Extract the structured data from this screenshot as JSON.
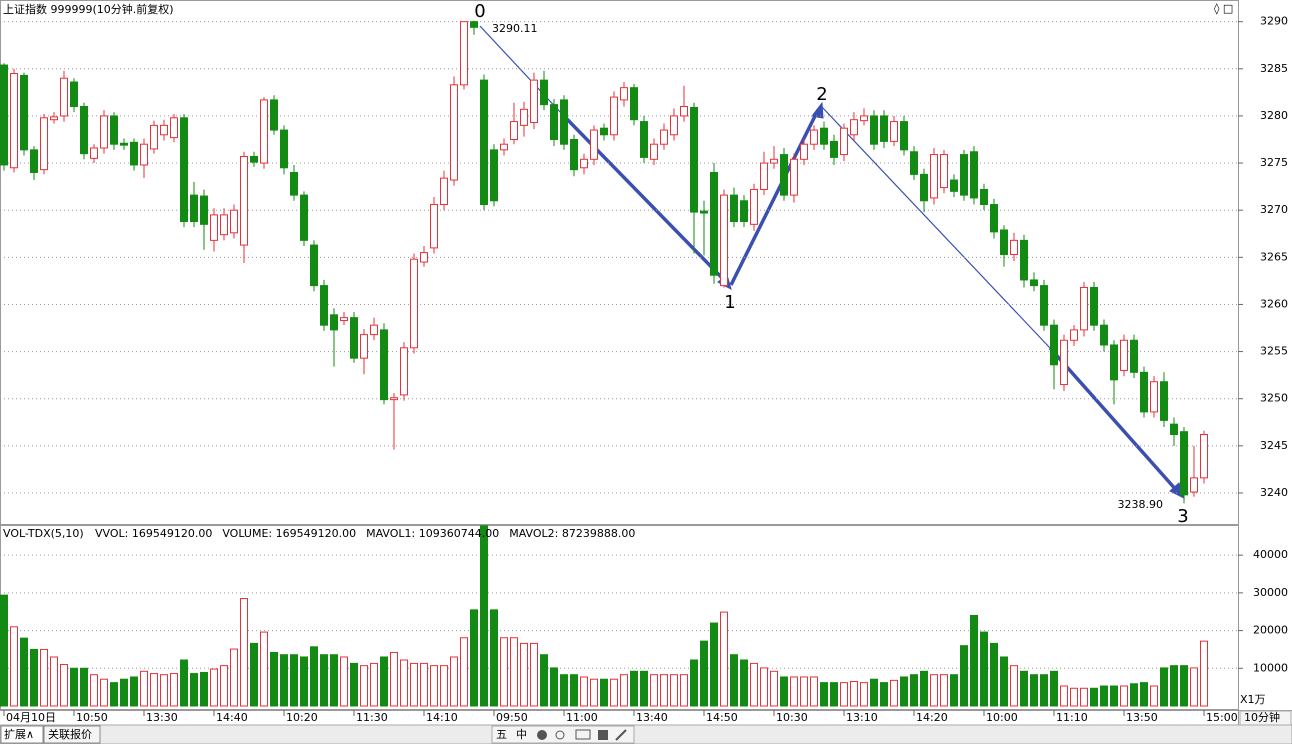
{
  "chart_data": [
    {
      "type": "candlestick",
      "title": "上证指数 999999(10分钟.前复权)",
      "categories": [
        "04月10日",
        null,
        null,
        null,
        null,
        null,
        null,
        "10:50",
        null,
        null,
        null,
        null,
        null,
        null,
        "13:30",
        null,
        null,
        null,
        null,
        null,
        null,
        "14:40",
        null,
        null,
        null,
        null,
        null,
        null,
        "10:20",
        null,
        null,
        null,
        null,
        null,
        null,
        "11:30",
        null,
        null,
        null,
        null,
        null,
        null,
        "14:10",
        null,
        null,
        null,
        null,
        null,
        null,
        "09:50",
        null,
        null,
        null,
        null,
        null,
        null,
        "11:00",
        null,
        null,
        null,
        null,
        null,
        null,
        "13:40",
        null,
        null,
        null,
        null,
        null,
        null,
        "14:50",
        null,
        null,
        null,
        null,
        null,
        null,
        "10:30",
        null,
        null,
        null,
        null,
        null,
        null,
        "13:10",
        null,
        null,
        null,
        null,
        null,
        null,
        "14:20",
        null,
        null,
        null,
        null,
        null,
        null,
        "10:00",
        null,
        null,
        null,
        null,
        null,
        null,
        "11:10",
        null,
        null,
        null,
        null,
        null,
        null,
        "13:50",
        null,
        null,
        null,
        null,
        null,
        null,
        null,
        "15:00"
      ],
      "open": [
        3285.4,
        3274.5,
        3284.3,
        3276.4,
        3274.3,
        3279.6,
        3280.0,
        3283.6,
        3281.0,
        3275.5,
        3276.6,
        3280.0,
        3277.1,
        3277.2,
        3274.8,
        3276.5,
        3278.0,
        3277.7,
        3279.8,
        3271.6,
        3271.5,
        3266.8,
        3267.4,
        3267.6,
        3266.3,
        3275.7,
        3275.0,
        3281.7,
        3278.5,
        3274.0,
        3271.6,
        3266.3,
        3262.0,
        3258.9,
        3258.3,
        3258.6,
        3254.3,
        3256.8,
        3257.3,
        3249.9,
        3250.4,
        3255.4,
        3264.5,
        3266.0,
        3270.6,
        3273.2,
        3283.3,
        3290.0,
        3283.8,
        3276.4,
        3276.4,
        3277.5,
        3279.0,
        3279.3,
        3283.8,
        3281.2,
        3281.7,
        3277.5,
        3274.5,
        3275.4,
        3278.7,
        3278.0,
        3281.7,
        3283.0,
        3279.4,
        3275.4,
        3277.0,
        3278.0,
        3280.0,
        3280.9,
        3269.9,
        3274.0,
        3262.0,
        3271.6,
        3271.0,
        3268.5,
        3272.2,
        3275.0,
        3275.9,
        3271.6,
        3275.4,
        3277.0,
        3278.7,
        3277.3,
        3275.9,
        3278.0,
        3279.5,
        3280.0,
        3280.0,
        3277.3,
        3279.4,
        3276.2,
        3273.8,
        3271.3,
        3272.4,
        3273.2,
        3275.9,
        3276.2,
        3272.2,
        3270.6,
        3267.9,
        3265.3,
        3266.8,
        3262.6,
        3262.0,
        3257.8,
        3251.5,
        3256.2,
        3257.3,
        3261.8,
        3257.8,
        3255.7,
        3253.0,
        3256.2,
        3252.8,
        3248.6,
        3251.8,
        3247.3,
        3246.5,
        3240.1,
        3241.6
      ],
      "high": [
        3285.6,
        3285.0,
        3284.6,
        3276.8,
        3280.2,
        3280.4,
        3284.8,
        3284.0,
        3281.4,
        3277.0,
        3280.6,
        3280.4,
        3277.6,
        3277.6,
        3277.6,
        3279.5,
        3279.6,
        3280.2,
        3280.2,
        3273.0,
        3272.2,
        3270.2,
        3270.2,
        3270.6,
        3276.2,
        3276.2,
        3282.0,
        3282.2,
        3279.0,
        3274.8,
        3272.0,
        3266.8,
        3262.6,
        3259.6,
        3259.2,
        3259.2,
        3257.4,
        3258.6,
        3258.0,
        3250.6,
        3256.0,
        3265.4,
        3266.2,
        3271.4,
        3274.2,
        3284.2,
        3290.0,
        3290.11,
        3284.4,
        3277.0,
        3277.6,
        3281.4,
        3281.5,
        3284.6,
        3284.8,
        3281.8,
        3282.2,
        3278.0,
        3276.0,
        3279.0,
        3279.2,
        3282.6,
        3283.6,
        3283.4,
        3280.0,
        3277.6,
        3279.2,
        3280.8,
        3283.2,
        3281.4,
        3271.0,
        3275.0,
        3272.2,
        3272.4,
        3271.6,
        3272.8,
        3276.2,
        3276.8,
        3276.6,
        3276.0,
        3277.6,
        3279.0,
        3279.4,
        3278.0,
        3279.2,
        3280.4,
        3280.8,
        3280.6,
        3280.6,
        3280.0,
        3280.0,
        3276.8,
        3274.4,
        3276.6,
        3276.4,
        3273.8,
        3276.4,
        3276.8,
        3272.8,
        3271.2,
        3268.4,
        3267.6,
        3267.4,
        3263.4,
        3262.6,
        3258.4,
        3256.8,
        3257.8,
        3262.4,
        3262.4,
        3258.4,
        3256.2,
        3256.8,
        3256.8,
        3253.4,
        3252.4,
        3252.8,
        3248.0,
        3247.0,
        3245.0,
        3246.6
      ],
      "low": [
        3274.2,
        3274.0,
        3275.8,
        3273.2,
        3273.8,
        3279.2,
        3279.4,
        3280.4,
        3275.4,
        3275.0,
        3276.0,
        3276.4,
        3276.4,
        3274.2,
        3273.4,
        3276.0,
        3277.4,
        3277.2,
        3268.2,
        3268.2,
        3265.8,
        3265.6,
        3266.8,
        3267.0,
        3264.4,
        3274.6,
        3274.4,
        3278.0,
        3273.8,
        3271.0,
        3266.2,
        3261.4,
        3257.2,
        3253.4,
        3257.8,
        3253.8,
        3252.6,
        3256.2,
        3249.4,
        3244.6,
        3249.8,
        3254.8,
        3264.0,
        3265.4,
        3270.0,
        3272.6,
        3282.8,
        3288.6,
        3270.0,
        3270.4,
        3275.8,
        3277.0,
        3277.8,
        3278.6,
        3280.6,
        3276.8,
        3276.4,
        3273.6,
        3273.8,
        3274.8,
        3277.4,
        3277.4,
        3281.0,
        3279.0,
        3275.0,
        3274.8,
        3276.4,
        3277.4,
        3279.4,
        3265.4,
        3265.2,
        3262.2,
        3261.8,
        3268.2,
        3268.2,
        3267.8,
        3271.6,
        3274.4,
        3271.0,
        3270.8,
        3274.8,
        3276.4,
        3276.4,
        3274.8,
        3275.2,
        3277.4,
        3279.0,
        3276.4,
        3276.6,
        3276.8,
        3275.8,
        3273.2,
        3269.8,
        3270.6,
        3271.8,
        3271.4,
        3271.0,
        3270.6,
        3270.0,
        3267.0,
        3264.0,
        3264.6,
        3261.8,
        3261.4,
        3257.2,
        3251.0,
        3250.8,
        3255.6,
        3256.6,
        3257.2,
        3255.0,
        3249.4,
        3252.4,
        3252.2,
        3248.0,
        3248.0,
        3247.0,
        3245.0,
        3238.9,
        3239.6,
        3241.0
      ],
      "close": [
        3274.8,
        3284.5,
        3276.4,
        3274.0,
        3279.8,
        3279.9,
        3284.0,
        3281.0,
        3276.0,
        3276.6,
        3280.0,
        3277.0,
        3276.9,
        3274.8,
        3277.0,
        3279.0,
        3279.0,
        3279.8,
        3268.8,
        3268.8,
        3268.5,
        3269.5,
        3269.5,
        3270.0,
        3275.7,
        3275.1,
        3281.7,
        3278.5,
        3274.5,
        3271.6,
        3266.8,
        3262.0,
        3257.8,
        3257.3,
        3258.6,
        3254.3,
        3256.8,
        3257.8,
        3249.9,
        3250.1,
        3255.4,
        3264.8,
        3265.5,
        3270.6,
        3273.4,
        3283.3,
        3290.0,
        3289.4,
        3270.6,
        3271.0,
        3277.0,
        3279.4,
        3280.7,
        3283.8,
        3281.2,
        3277.5,
        3277.0,
        3274.3,
        3275.4,
        3278.5,
        3278.0,
        3282.0,
        3283.0,
        3279.6,
        3275.6,
        3277.0,
        3278.5,
        3280.0,
        3281.0,
        3269.8,
        3269.7,
        3263.1,
        3271.6,
        3268.8,
        3268.8,
        3272.2,
        3275.0,
        3275.4,
        3271.6,
        3275.4,
        3277.0,
        3278.5,
        3277.0,
        3275.6,
        3278.7,
        3279.6,
        3280.0,
        3277.0,
        3277.3,
        3279.4,
        3276.4,
        3273.8,
        3271.0,
        3275.9,
        3275.9,
        3272.0,
        3271.6,
        3271.3,
        3270.6,
        3267.7,
        3265.3,
        3266.8,
        3262.6,
        3262.0,
        3257.8,
        3253.6,
        3256.2,
        3257.3,
        3261.8,
        3257.8,
        3255.7,
        3252.0,
        3256.2,
        3252.8,
        3248.6,
        3251.8,
        3247.7,
        3246.2,
        3239.8,
        3241.6,
        3246.2
      ],
      "ylim": [
        3236.6,
        3292.3
      ],
      "yticks": [
        3240,
        3245,
        3250,
        3255,
        3260,
        3265,
        3270,
        3275,
        3280,
        3285,
        3290
      ],
      "grid": true,
      "up_color": "#e8303a",
      "down_color": "#138a13",
      "annotations": [
        "0",
        "1",
        "2",
        "3"
      ],
      "price_labels": [
        "3290.11",
        "3238.90"
      ]
    },
    {
      "type": "bar",
      "title": "VOL-TDX(5,10)",
      "indicators": [
        "VVOL: 169549120.00",
        "VOLUME: 169549120.00",
        "MAVOL1: 109360744.00",
        "MAVOL2: 87239888.00"
      ],
      "indicator_colors": [
        "#000000",
        "#cc22cc",
        "#cc22cc",
        "#808080"
      ],
      "values": [
        29400,
        21000,
        18000,
        15000,
        15000,
        13000,
        11000,
        10000,
        10000,
        8300,
        7100,
        6200,
        7100,
        7700,
        9200,
        8600,
        8300,
        8600,
        12200,
        8600,
        8900,
        9800,
        10700,
        15100,
        28500,
        16600,
        19600,
        14200,
        13600,
        13600,
        13000,
        15700,
        13600,
        13600,
        13000,
        11300,
        10700,
        11300,
        13000,
        14200,
        12200,
        11300,
        11300,
        10700,
        10700,
        13000,
        18100,
        25500,
        47800,
        25500,
        18100,
        18100,
        16600,
        16600,
        13600,
        10100,
        8300,
        8300,
        7700,
        7100,
        7100,
        7100,
        8300,
        9200,
        9200,
        8300,
        8300,
        8300,
        8300,
        12200,
        17200,
        22000,
        24900,
        13600,
        12200,
        11300,
        10100,
        9200,
        7700,
        7700,
        7700,
        7700,
        6200,
        6200,
        6200,
        6500,
        6200,
        7100,
        6200,
        6800,
        7700,
        8300,
        9200,
        8300,
        8300,
        8300,
        16000,
        24000,
        19600,
        16600,
        13000,
        10700,
        9200,
        8300,
        8300,
        9200,
        5300,
        4700,
        4700,
        4700,
        5300,
        5300,
        5300,
        5900,
        6200,
        5300,
        10100,
        10700,
        10700,
        10100,
        17200
      ],
      "ylim": [
        0,
        48000
      ],
      "yticks": [
        10000,
        20000,
        30000,
        40000
      ],
      "grid": true,
      "unit_label": "X1万"
    }
  ],
  "period_label": "10分钟",
  "tabs": [
    "扩展∧",
    "关联报价"
  ],
  "toolbar": [
    "五",
    "中"
  ]
}
